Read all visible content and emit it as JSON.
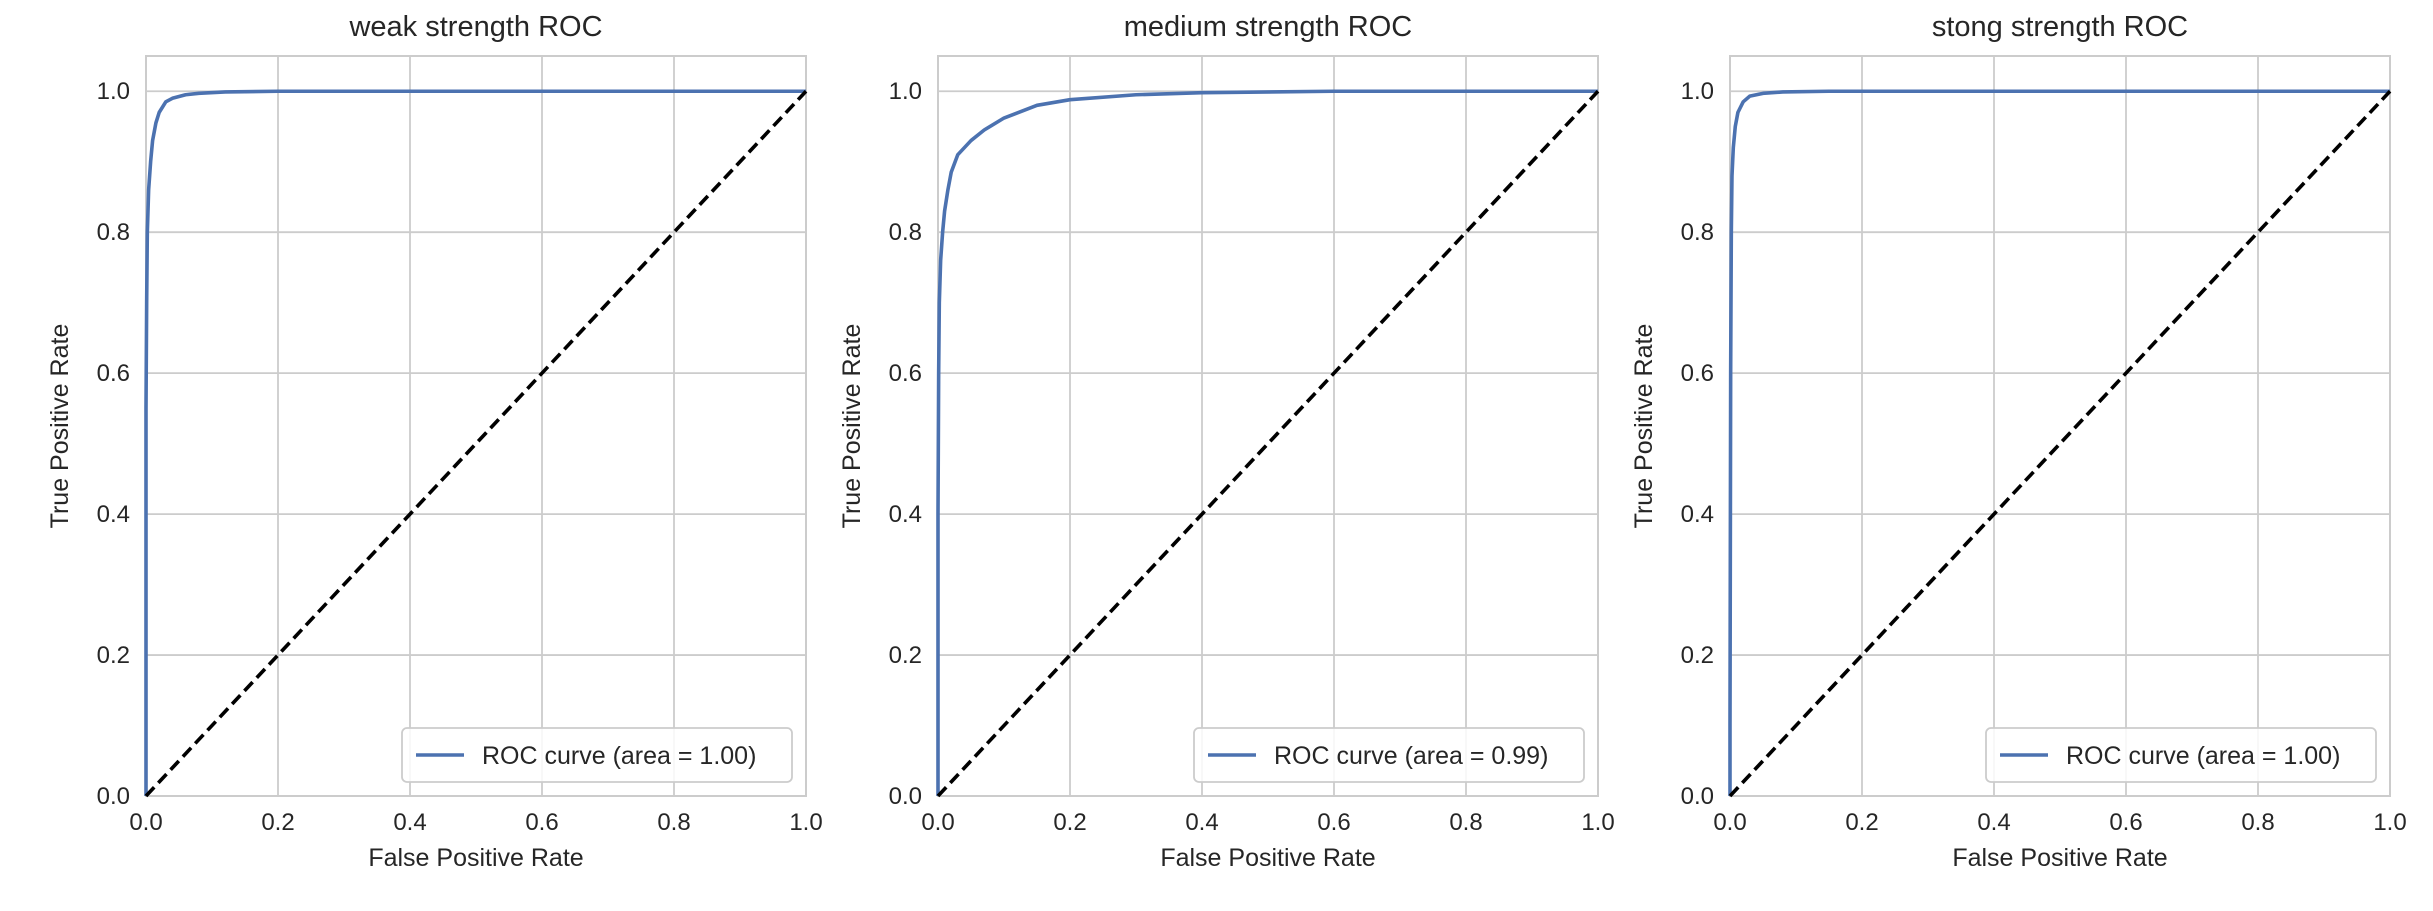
{
  "chart_data": [
    {
      "type": "line",
      "title": "weak strength ROC",
      "xlabel": "False Positive Rate",
      "ylabel": "True Positive Rate",
      "xlim": [
        0.0,
        1.0
      ],
      "ylim": [
        0.0,
        1.05
      ],
      "xticks": [
        "0.0",
        "0.2",
        "0.4",
        "0.6",
        "0.8",
        "1.0"
      ],
      "yticks": [
        "0.0",
        "0.2",
        "0.4",
        "0.6",
        "0.8",
        "1.0"
      ],
      "grid": true,
      "legend_position": "lower-right",
      "series": [
        {
          "name": "ROC curve (area = 1.00)",
          "color": "#4c72b0",
          "style": "solid",
          "x": [
            0.0,
            0.0,
            0.001,
            0.002,
            0.004,
            0.007,
            0.01,
            0.015,
            0.02,
            0.03,
            0.04,
            0.06,
            0.08,
            0.12,
            0.2,
            0.4,
            0.7,
            1.0
          ],
          "y": [
            0.0,
            0.55,
            0.7,
            0.8,
            0.86,
            0.9,
            0.93,
            0.955,
            0.97,
            0.985,
            0.99,
            0.995,
            0.997,
            0.999,
            1.0,
            1.0,
            1.0,
            1.0
          ]
        },
        {
          "color": "#000000",
          "style": "dashed",
          "x": [
            0.0,
            1.0
          ],
          "y": [
            0.0,
            1.0
          ]
        }
      ]
    },
    {
      "type": "line",
      "title": "medium strength ROC",
      "xlabel": "False Positive Rate",
      "ylabel": "True Positive Rate",
      "xlim": [
        0.0,
        1.0
      ],
      "ylim": [
        0.0,
        1.05
      ],
      "xticks": [
        "0.0",
        "0.2",
        "0.4",
        "0.6",
        "0.8",
        "1.0"
      ],
      "yticks": [
        "0.0",
        "0.2",
        "0.4",
        "0.6",
        "0.8",
        "1.0"
      ],
      "grid": true,
      "legend_position": "lower-right",
      "series": [
        {
          "name": "ROC curve (area = 0.99)",
          "color": "#4c72b0",
          "style": "solid",
          "x": [
            0.0,
            0.0,
            0.001,
            0.002,
            0.004,
            0.007,
            0.01,
            0.015,
            0.02,
            0.03,
            0.05,
            0.07,
            0.1,
            0.15,
            0.2,
            0.3,
            0.4,
            0.6,
            0.8,
            1.0
          ],
          "y": [
            0.0,
            0.4,
            0.6,
            0.7,
            0.76,
            0.8,
            0.83,
            0.86,
            0.885,
            0.91,
            0.93,
            0.945,
            0.962,
            0.98,
            0.988,
            0.995,
            0.998,
            1.0,
            1.0,
            1.0
          ]
        },
        {
          "color": "#000000",
          "style": "dashed",
          "x": [
            0.0,
            1.0
          ],
          "y": [
            0.0,
            1.0
          ]
        }
      ]
    },
    {
      "type": "line",
      "title": "stong strength ROC",
      "xlabel": "False Positive Rate",
      "ylabel": "True Positive Rate",
      "xlim": [
        0.0,
        1.0
      ],
      "ylim": [
        0.0,
        1.05
      ],
      "xticks": [
        "0.0",
        "0.2",
        "0.4",
        "0.6",
        "0.8",
        "1.0"
      ],
      "yticks": [
        "0.0",
        "0.2",
        "0.4",
        "0.6",
        "0.8",
        "1.0"
      ],
      "grid": true,
      "legend_position": "lower-right",
      "series": [
        {
          "name": "ROC curve (area = 1.00)",
          "color": "#4c72b0",
          "style": "solid",
          "x": [
            0.0,
            0.0,
            0.001,
            0.002,
            0.003,
            0.005,
            0.008,
            0.012,
            0.02,
            0.03,
            0.05,
            0.08,
            0.15,
            0.3,
            0.6,
            1.0
          ],
          "y": [
            0.0,
            0.1,
            0.6,
            0.8,
            0.88,
            0.92,
            0.95,
            0.97,
            0.985,
            0.993,
            0.997,
            0.999,
            1.0,
            1.0,
            1.0,
            1.0
          ]
        },
        {
          "color": "#000000",
          "style": "dashed",
          "x": [
            0.0,
            1.0
          ],
          "y": [
            0.0,
            1.0
          ]
        }
      ]
    }
  ],
  "style": {
    "grid_color": "#cccccc",
    "spine_color": "#cccccc",
    "text_color": "#262626",
    "background": "#ffffff"
  }
}
